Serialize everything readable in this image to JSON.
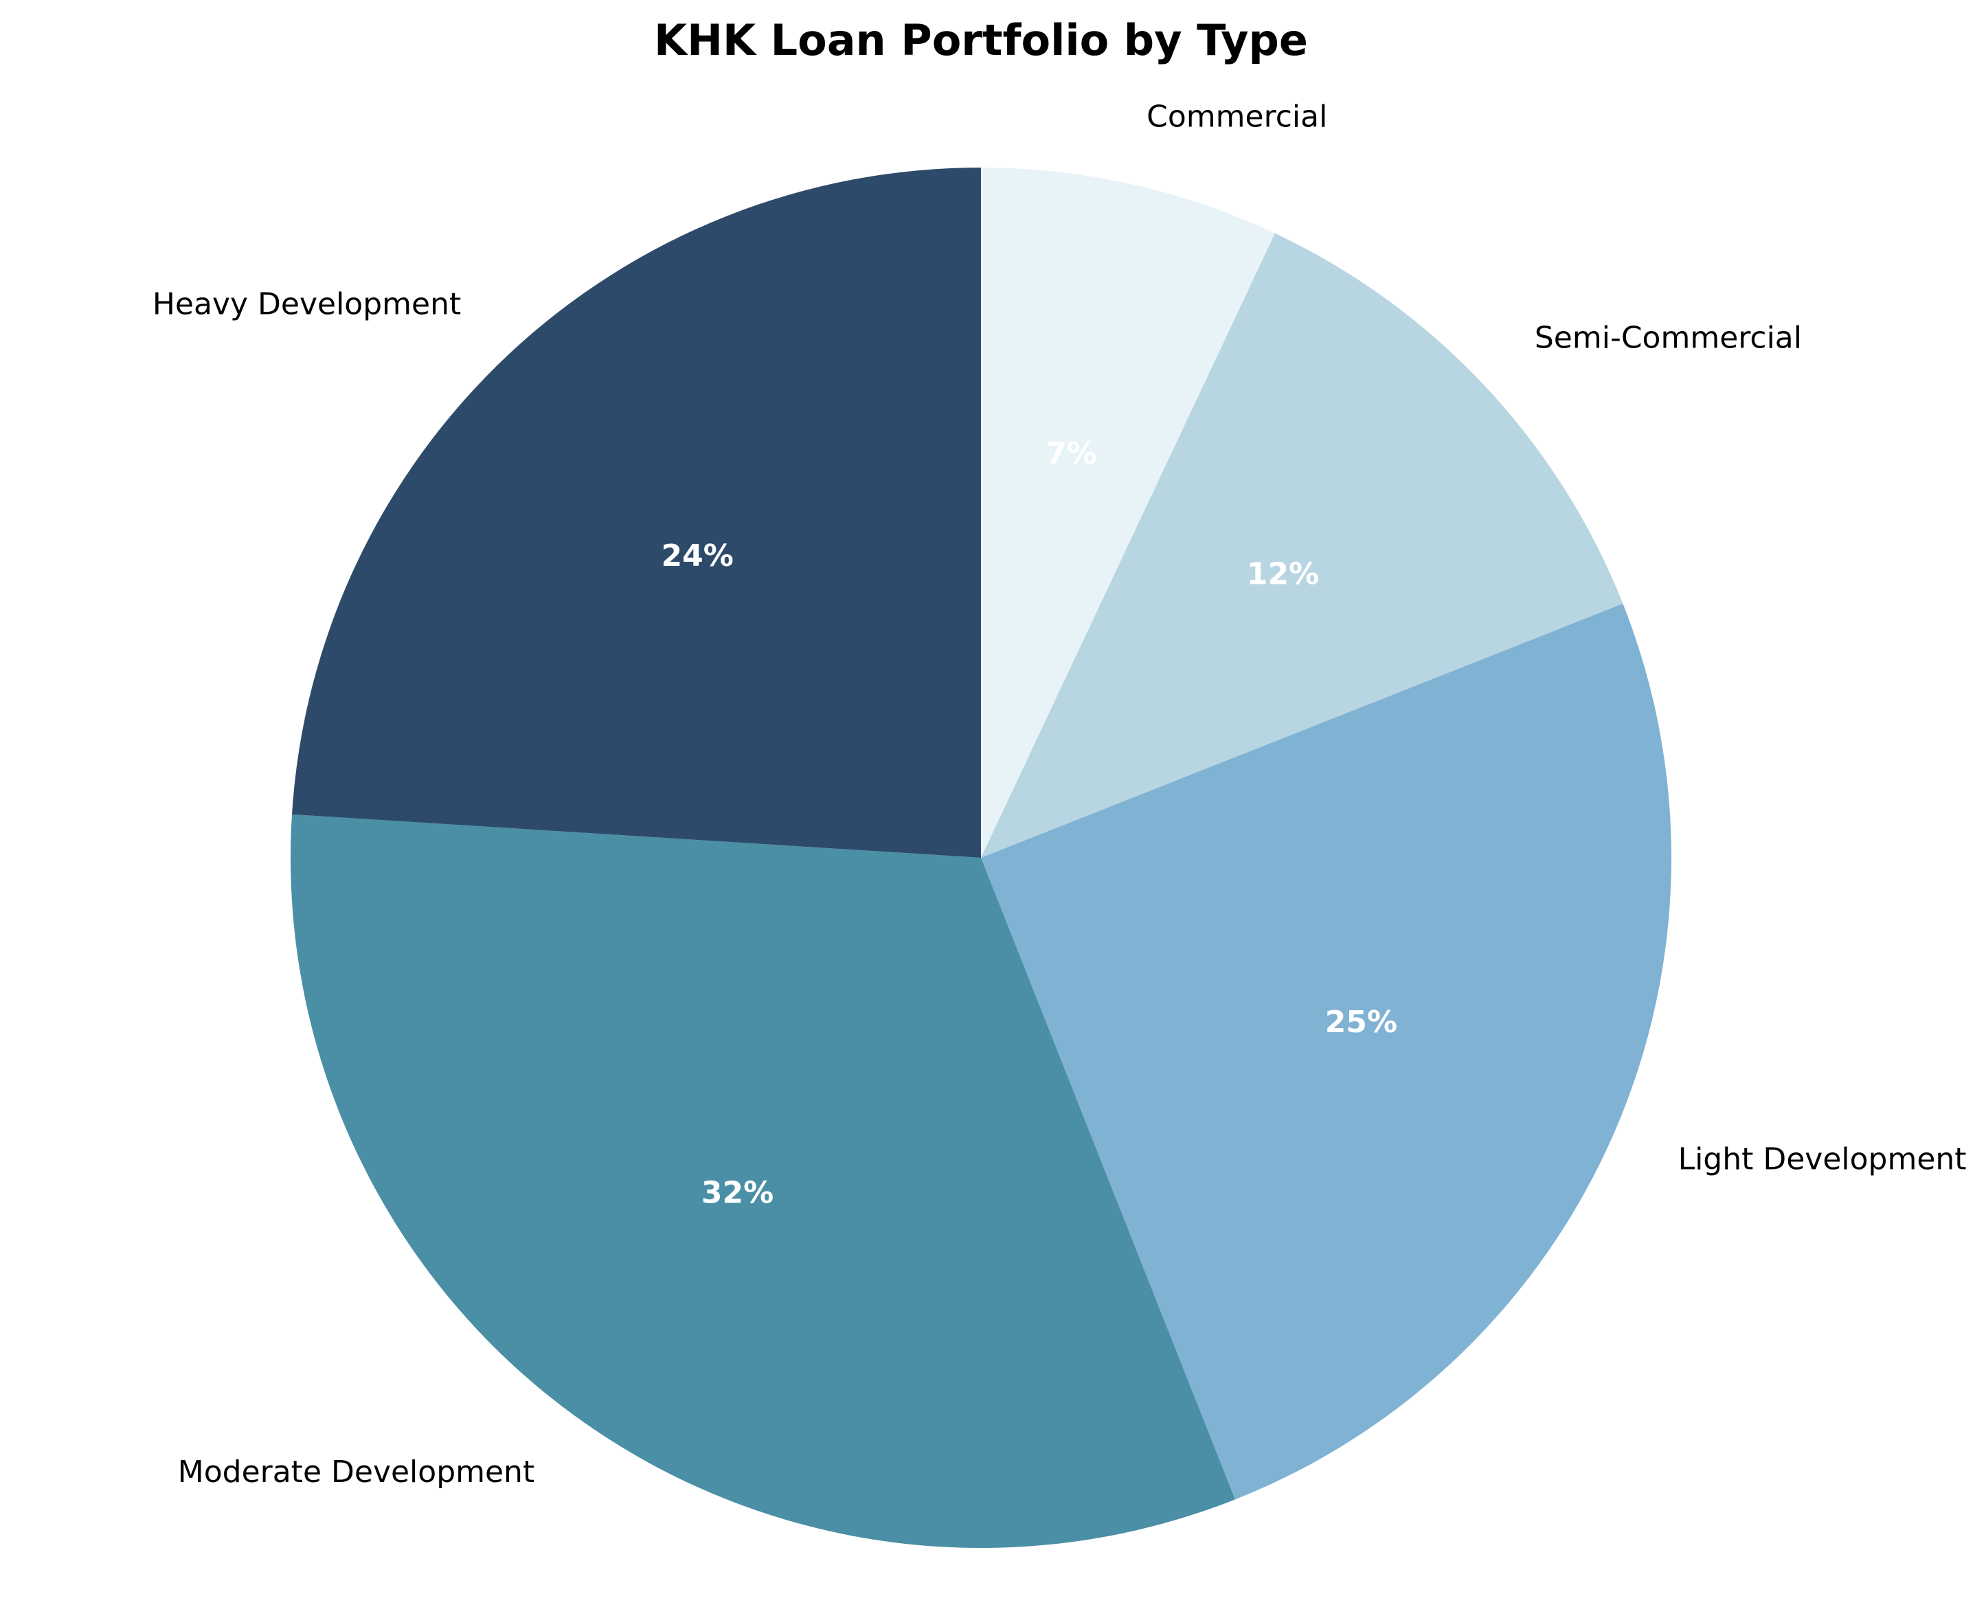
{
  "chart_data": {
    "type": "pie",
    "title": "KHK Loan Portfolio by Type",
    "start_angle_deg": 90,
    "direction": "clockwise",
    "slices": [
      {
        "label": "Commercial",
        "value": 7,
        "pct_label": "7%",
        "color": "#e8f3f8"
      },
      {
        "label": "Semi-Commercial",
        "value": 12,
        "pct_label": "12%",
        "color": "#b8d5e2"
      },
      {
        "label": "Light Development",
        "value": 25,
        "pct_label": "25%",
        "color": "#7fb2d3"
      },
      {
        "label": "Moderate Development",
        "value": 32,
        "pct_label": "32%",
        "color": "#4a8fa6"
      },
      {
        "label": "Heavy Development",
        "value": 24,
        "pct_label": "24%",
        "color": "#2e4a6a"
      }
    ]
  }
}
